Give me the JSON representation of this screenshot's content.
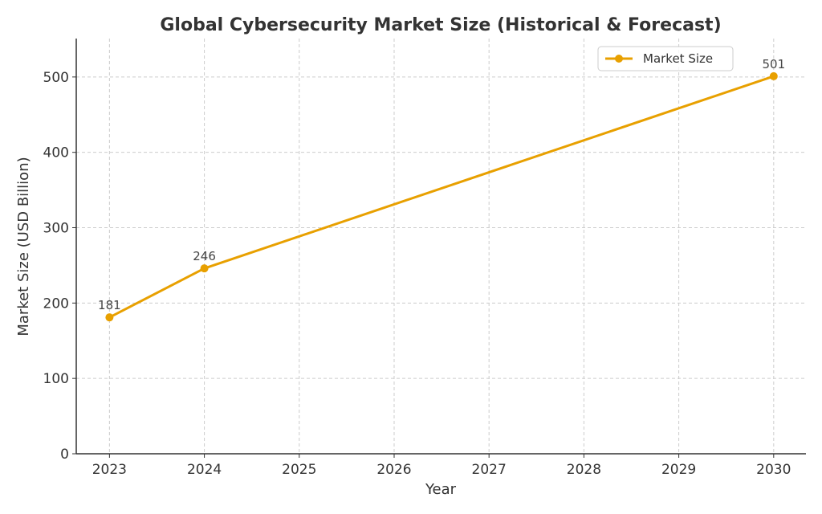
{
  "chart_data": {
    "type": "line",
    "title": "Global Cybersecurity Market Size (Historical & Forecast)",
    "xlabel": "Year",
    "ylabel": "Market Size (USD Billion)",
    "x": [
      2023,
      2024,
      2030
    ],
    "series": [
      {
        "name": "Market Size",
        "values": [
          181,
          246,
          501
        ],
        "color": "#E8A000",
        "marker": "circle",
        "data_labels": [
          "181",
          "246",
          "501"
        ]
      }
    ],
    "xticks": [
      2023,
      2024,
      2025,
      2026,
      2027,
      2028,
      2029,
      2030
    ],
    "xtick_labels": [
      "2023",
      "2024",
      "2025",
      "2026",
      "2027",
      "2028",
      "2029",
      "2030"
    ],
    "yticks": [
      0,
      100,
      200,
      300,
      400,
      500
    ],
    "ytick_labels": [
      "0",
      "100",
      "200",
      "300",
      "400",
      "500"
    ],
    "xlim": [
      2022.65,
      2030.34
    ],
    "ylim": [
      0,
      551
    ],
    "grid": true,
    "legend": {
      "placement": "top-right",
      "entries": [
        "Market Size"
      ]
    }
  }
}
